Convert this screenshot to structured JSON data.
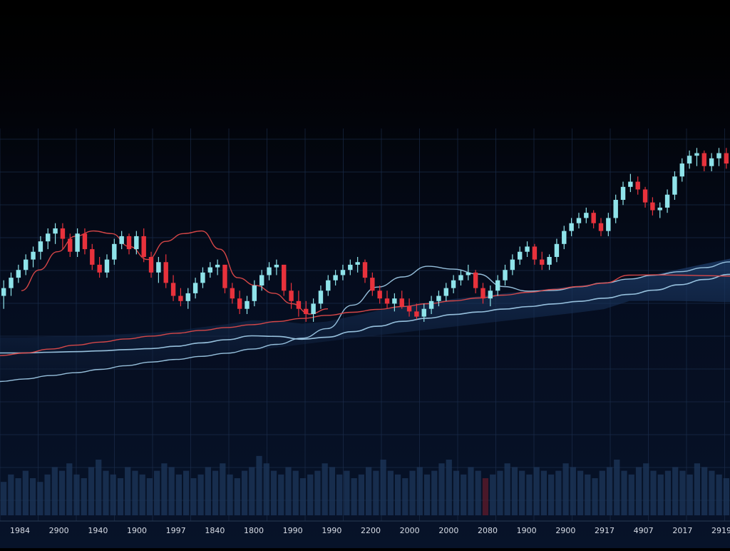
{
  "chart_data": {
    "type": "candlestick",
    "title": "",
    "xlabel": "",
    "ylabel": "",
    "grid": true,
    "theme": "dark",
    "colors": {
      "up": "#8fe3ea",
      "down": "#e8323c",
      "line_red": "#e04a4a",
      "line_blue": "#9ec9e6",
      "area": "#1d3b6a",
      "volume": "#1c3458",
      "volume_highlight": "#5a1a2a",
      "grid": "#1a2c4a",
      "axis_text": "#d8dde6"
    },
    "x_tick_labels": [
      "1984",
      "2900",
      "1940",
      "1900",
      "1997",
      "1840",
      "1800",
      "1990",
      "1990",
      "2200",
      "2000",
      "2000",
      "2080",
      "1900",
      "2900",
      "2917",
      "4907",
      "2017",
      "2919"
    ],
    "candles": [
      {
        "o": 40,
        "h": 46,
        "l": 35,
        "c": 43
      },
      {
        "o": 43,
        "h": 49,
        "l": 40,
        "c": 47
      },
      {
        "o": 47,
        "h": 52,
        "l": 45,
        "c": 50
      },
      {
        "o": 50,
        "h": 56,
        "l": 48,
        "c": 54
      },
      {
        "o": 54,
        "h": 59,
        "l": 51,
        "c": 57
      },
      {
        "o": 57,
        "h": 63,
        "l": 54,
        "c": 61
      },
      {
        "o": 61,
        "h": 66,
        "l": 58,
        "c": 64
      },
      {
        "o": 64,
        "h": 68,
        "l": 60,
        "c": 66
      },
      {
        "o": 66,
        "h": 68,
        "l": 58,
        "c": 62
      },
      {
        "o": 62,
        "h": 64,
        "l": 55,
        "c": 57
      },
      {
        "o": 57,
        "h": 66,
        "l": 55,
        "c": 64
      },
      {
        "o": 64,
        "h": 66,
        "l": 56,
        "c": 58
      },
      {
        "o": 58,
        "h": 60,
        "l": 50,
        "c": 52
      },
      {
        "o": 52,
        "h": 55,
        "l": 47,
        "c": 49
      },
      {
        "o": 49,
        "h": 56,
        "l": 47,
        "c": 54
      },
      {
        "o": 54,
        "h": 62,
        "l": 52,
        "c": 60
      },
      {
        "o": 60,
        "h": 65,
        "l": 58,
        "c": 63
      },
      {
        "o": 63,
        "h": 64,
        "l": 56,
        "c": 58
      },
      {
        "o": 58,
        "h": 65,
        "l": 56,
        "c": 63
      },
      {
        "o": 63,
        "h": 66,
        "l": 53,
        "c": 55
      },
      {
        "o": 55,
        "h": 57,
        "l": 47,
        "c": 49
      },
      {
        "o": 49,
        "h": 55,
        "l": 45,
        "c": 53
      },
      {
        "o": 53,
        "h": 56,
        "l": 43,
        "c": 45
      },
      {
        "o": 45,
        "h": 48,
        "l": 38,
        "c": 40
      },
      {
        "o": 40,
        "h": 43,
        "l": 36,
        "c": 38
      },
      {
        "o": 38,
        "h": 43,
        "l": 35,
        "c": 41
      },
      {
        "o": 41,
        "h": 47,
        "l": 39,
        "c": 45
      },
      {
        "o": 45,
        "h": 51,
        "l": 43,
        "c": 49
      },
      {
        "o": 49,
        "h": 53,
        "l": 47,
        "c": 51
      },
      {
        "o": 51,
        "h": 54,
        "l": 48,
        "c": 52
      },
      {
        "o": 52,
        "h": 52,
        "l": 41,
        "c": 43
      },
      {
        "o": 43,
        "h": 45,
        "l": 37,
        "c": 39
      },
      {
        "o": 39,
        "h": 42,
        "l": 33,
        "c": 35
      },
      {
        "o": 35,
        "h": 40,
        "l": 33,
        "c": 38
      },
      {
        "o": 38,
        "h": 46,
        "l": 36,
        "c": 44
      },
      {
        "o": 44,
        "h": 50,
        "l": 42,
        "c": 48
      },
      {
        "o": 48,
        "h": 53,
        "l": 46,
        "c": 51
      },
      {
        "o": 51,
        "h": 54,
        "l": 48,
        "c": 52
      },
      {
        "o": 52,
        "h": 52,
        "l": 40,
        "c": 42
      },
      {
        "o": 42,
        "h": 45,
        "l": 35,
        "c": 38
      },
      {
        "o": 38,
        "h": 42,
        "l": 32,
        "c": 35
      },
      {
        "o": 35,
        "h": 38,
        "l": 30,
        "c": 33
      },
      {
        "o": 33,
        "h": 39,
        "l": 30,
        "c": 37
      },
      {
        "o": 37,
        "h": 44,
        "l": 35,
        "c": 42
      },
      {
        "o": 42,
        "h": 48,
        "l": 40,
        "c": 46
      },
      {
        "o": 46,
        "h": 50,
        "l": 44,
        "c": 48
      },
      {
        "o": 48,
        "h": 52,
        "l": 46,
        "c": 50
      },
      {
        "o": 50,
        "h": 54,
        "l": 48,
        "c": 52
      },
      {
        "o": 52,
        "h": 55,
        "l": 49,
        "c": 53
      },
      {
        "o": 53,
        "h": 54,
        "l": 45,
        "c": 47
      },
      {
        "o": 47,
        "h": 49,
        "l": 40,
        "c": 42
      },
      {
        "o": 42,
        "h": 44,
        "l": 37,
        "c": 39
      },
      {
        "o": 39,
        "h": 42,
        "l": 35,
        "c": 37
      },
      {
        "o": 37,
        "h": 41,
        "l": 34,
        "c": 39
      },
      {
        "o": 39,
        "h": 42,
        "l": 35,
        "c": 36
      },
      {
        "o": 36,
        "h": 39,
        "l": 32,
        "c": 34
      },
      {
        "o": 34,
        "h": 37,
        "l": 31,
        "c": 32
      },
      {
        "o": 32,
        "h": 37,
        "l": 30,
        "c": 35
      },
      {
        "o": 35,
        "h": 40,
        "l": 33,
        "c": 38
      },
      {
        "o": 38,
        "h": 42,
        "l": 36,
        "c": 40
      },
      {
        "o": 40,
        "h": 45,
        "l": 38,
        "c": 43
      },
      {
        "o": 43,
        "h": 48,
        "l": 41,
        "c": 46
      },
      {
        "o": 46,
        "h": 50,
        "l": 44,
        "c": 48
      },
      {
        "o": 48,
        "h": 52,
        "l": 46,
        "c": 49
      },
      {
        "o": 49,
        "h": 50,
        "l": 41,
        "c": 43
      },
      {
        "o": 43,
        "h": 45,
        "l": 37,
        "c": 39
      },
      {
        "o": 39,
        "h": 44,
        "l": 36,
        "c": 42
      },
      {
        "o": 42,
        "h": 48,
        "l": 40,
        "c": 46
      },
      {
        "o": 46,
        "h": 52,
        "l": 44,
        "c": 50
      },
      {
        "o": 50,
        "h": 56,
        "l": 48,
        "c": 54
      },
      {
        "o": 54,
        "h": 59,
        "l": 52,
        "c": 57
      },
      {
        "o": 57,
        "h": 61,
        "l": 55,
        "c": 59
      },
      {
        "o": 59,
        "h": 60,
        "l": 52,
        "c": 54
      },
      {
        "o": 54,
        "h": 57,
        "l": 50,
        "c": 52
      },
      {
        "o": 52,
        "h": 56,
        "l": 50,
        "c": 55
      },
      {
        "o": 55,
        "h": 62,
        "l": 53,
        "c": 60
      },
      {
        "o": 60,
        "h": 67,
        "l": 58,
        "c": 65
      },
      {
        "o": 65,
        "h": 70,
        "l": 63,
        "c": 68
      },
      {
        "o": 68,
        "h": 72,
        "l": 66,
        "c": 70
      },
      {
        "o": 70,
        "h": 74,
        "l": 68,
        "c": 72
      },
      {
        "o": 72,
        "h": 73,
        "l": 66,
        "c": 68
      },
      {
        "o": 68,
        "h": 70,
        "l": 63,
        "c": 65
      },
      {
        "o": 65,
        "h": 72,
        "l": 63,
        "c": 70
      },
      {
        "o": 70,
        "h": 79,
        "l": 68,
        "c": 77
      },
      {
        "o": 77,
        "h": 84,
        "l": 75,
        "c": 82
      },
      {
        "o": 82,
        "h": 87,
        "l": 80,
        "c": 84
      },
      {
        "o": 84,
        "h": 86,
        "l": 79,
        "c": 81
      },
      {
        "o": 81,
        "h": 82,
        "l": 74,
        "c": 76
      },
      {
        "o": 76,
        "h": 78,
        "l": 71,
        "c": 73
      },
      {
        "o": 73,
        "h": 76,
        "l": 70,
        "c": 74
      },
      {
        "o": 74,
        "h": 81,
        "l": 72,
        "c": 79
      },
      {
        "o": 79,
        "h": 88,
        "l": 77,
        "c": 86
      },
      {
        "o": 86,
        "h": 93,
        "l": 84,
        "c": 91
      },
      {
        "o": 91,
        "h": 96,
        "l": 89,
        "c": 94
      },
      {
        "o": 94,
        "h": 97,
        "l": 90,
        "c": 95
      },
      {
        "o": 95,
        "h": 96,
        "l": 88,
        "c": 90
      },
      {
        "o": 90,
        "h": 95,
        "l": 88,
        "c": 93
      },
      {
        "o": 93,
        "h": 97,
        "l": 90,
        "c": 95
      },
      {
        "o": 95,
        "h": 97,
        "l": 89,
        "c": 91
      }
    ],
    "lines": [
      {
        "values": [
          18,
          18,
          18.3,
          18.5,
          18.8,
          19.3,
          19.7,
          20.6,
          21.9,
          23.1,
          24.6,
          24.4,
          23.3,
          24.1,
          26.2,
          28.3,
          30.2,
          31.4,
          32.8,
          33.8,
          34.9,
          35.9,
          36.9,
          37.9,
          39.1,
          40.6,
          42.2,
          44.3,
          46.3,
          48.3
        ]
      },
      {
        "values": [
          7,
          8,
          9.3,
          10.4,
          11.7,
          13.1,
          14.5,
          15.5,
          16.7,
          17.9,
          19.5,
          21.3,
          23.7,
          27.4,
          36.4,
          43.4,
          47.3,
          51.4,
          50.3,
          48.4,
          43.6,
          41.8,
          42.1,
          43.5,
          45.0,
          46.5,
          48.0,
          49.3,
          50.9,
          53.1
        ]
      },
      {
        "values": [
          17,
          18,
          19.5,
          21,
          22.2,
          23.4,
          24.5,
          25.6,
          26.7,
          27.8,
          28.9,
          30.1,
          31.3,
          32.5,
          33.7,
          34.8,
          35.9,
          37,
          38.1,
          39.2,
          40.3,
          41.4,
          42.5,
          43.6,
          44.9,
          48.0,
          48.1,
          48.0,
          47.8,
          47.6
        ]
      },
      {
        "values": [
          42,
          50,
          57,
          63,
          65,
          64,
          59,
          54,
          61,
          64,
          65,
          58,
          47,
          44,
          41,
          37,
          33,
          35
        ]
      }
    ],
    "volume": [
      9,
      11,
      10,
      12,
      10,
      9,
      11,
      13,
      12,
      14,
      11,
      10,
      13,
      15,
      12,
      11,
      10,
      13,
      12,
      11,
      10,
      12,
      14,
      13,
      11,
      12,
      10,
      11,
      13,
      12,
      14,
      11,
      10,
      12,
      13,
      16,
      14,
      12,
      11,
      13,
      12,
      10,
      11,
      12,
      14,
      13,
      11,
      12,
      10,
      11,
      13,
      12,
      15,
      12,
      11,
      10,
      12,
      13,
      11,
      12,
      14,
      15,
      12,
      11,
      13,
      12,
      10,
      11,
      12,
      14,
      13,
      12,
      11,
      13,
      12,
      11,
      12,
      14,
      13,
      12,
      11,
      10,
      12,
      13,
      15,
      12,
      11,
      13,
      14,
      12,
      11,
      12,
      13,
      12,
      11,
      14,
      13,
      12,
      11,
      10
    ]
  }
}
